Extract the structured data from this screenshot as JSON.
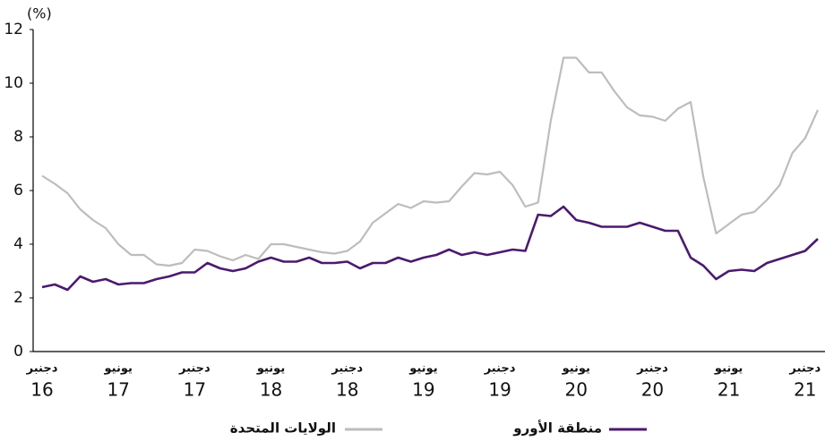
{
  "chart_data": {
    "type": "line",
    "y_unit": "(%)",
    "categories": [
      "دجنبر",
      null,
      null,
      null,
      null,
      null,
      "يونيو",
      null,
      null,
      null,
      null,
      null,
      "دجنبر",
      null,
      null,
      null,
      null,
      null,
      "يونيو",
      null,
      null,
      null,
      null,
      null,
      "دجنبر",
      null,
      null,
      null,
      null,
      null,
      "يونيو",
      null,
      null,
      null,
      null,
      null,
      "دجنبر",
      null,
      null,
      null,
      null,
      null,
      "يونيو",
      null,
      null,
      null,
      null,
      null,
      "دجنبر",
      null,
      null,
      null,
      null,
      null,
      "يونيو",
      null,
      null,
      null,
      null,
      null,
      "دجنبر",
      null
    ],
    "category_years": [
      "16",
      null,
      null,
      null,
      null,
      null,
      "17",
      null,
      null,
      null,
      null,
      null,
      "17",
      null,
      null,
      null,
      null,
      null,
      "18",
      null,
      null,
      null,
      null,
      null,
      "18",
      null,
      null,
      null,
      null,
      null,
      "19",
      null,
      null,
      null,
      null,
      null,
      "19",
      null,
      null,
      null,
      null,
      null,
      "20",
      null,
      null,
      null,
      null,
      null,
      "20",
      null,
      null,
      null,
      null,
      null,
      "21",
      null,
      null,
      null,
      null,
      null,
      "21",
      null
    ],
    "series": [
      {
        "name": "الولايات المتحدة",
        "color": "#bdbdbd",
        "values": [
          6.55,
          6.25,
          5.9,
          5.3,
          4.9,
          4.6,
          4.0,
          3.6,
          3.6,
          3.25,
          3.2,
          3.3,
          3.8,
          3.75,
          3.55,
          3.4,
          3.6,
          3.45,
          4.0,
          4.0,
          3.9,
          3.8,
          3.7,
          3.65,
          3.75,
          4.1,
          4.8,
          5.15,
          5.5,
          5.35,
          5.6,
          5.55,
          5.6,
          6.15,
          6.65,
          6.6,
          6.7,
          6.2,
          5.4,
          5.55,
          8.6,
          10.95,
          10.95,
          10.4,
          10.4,
          9.7,
          9.1,
          8.8,
          8.75,
          8.6,
          9.05,
          9.3,
          6.5,
          4.4,
          4.75,
          5.1,
          5.2,
          5.65,
          6.2,
          7.4,
          7.95,
          9.0
        ]
      },
      {
        "name": "منطقة الأورو",
        "color": "#4b1a6e",
        "values": [
          2.4,
          2.5,
          2.3,
          2.8,
          2.6,
          2.7,
          2.5,
          2.55,
          2.55,
          2.7,
          2.8,
          2.95,
          2.95,
          3.3,
          3.1,
          3.0,
          3.1,
          3.35,
          3.5,
          3.35,
          3.35,
          3.5,
          3.3,
          3.3,
          3.35,
          3.1,
          3.3,
          3.3,
          3.5,
          3.35,
          3.5,
          3.6,
          3.8,
          3.6,
          3.7,
          3.6,
          3.7,
          3.8,
          3.75,
          5.1,
          5.05,
          5.4,
          4.9,
          4.8,
          4.65,
          4.65,
          4.65,
          4.8,
          4.65,
          4.5,
          4.5,
          3.5,
          3.2,
          2.7,
          3.0,
          3.05,
          3.0,
          3.3,
          3.45,
          3.6,
          3.75,
          4.2
        ]
      }
    ],
    "ylim": [
      0,
      12
    ],
    "yticks": [
      0,
      2,
      4,
      6,
      8,
      10,
      12
    ],
    "grid": false
  }
}
